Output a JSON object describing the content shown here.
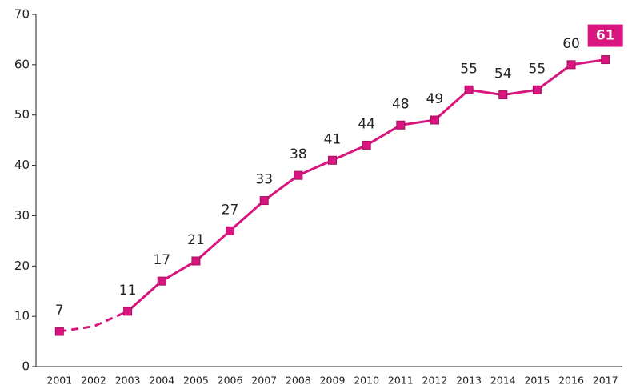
{
  "chart_data": {
    "type": "line",
    "categories": [
      "2001",
      "2002",
      "2003",
      "2004",
      "2005",
      "2006",
      "2007",
      "2008",
      "2009",
      "2010",
      "2011",
      "2012",
      "2013",
      "2014",
      "2015",
      "2016",
      "2017"
    ],
    "values": [
      7,
      8,
      11,
      17,
      21,
      27,
      33,
      38,
      41,
      44,
      48,
      49,
      55,
      54,
      55,
      60,
      61
    ],
    "value_labels": [
      "7",
      null,
      "11",
      "17",
      "21",
      "27",
      "33",
      "38",
      "41",
      "44",
      "48",
      "49",
      "55",
      "54",
      "55",
      "60",
      "61"
    ],
    "color": "#d9157f",
    "dashed_until": "2003",
    "highlight_last": true,
    "ylim": [
      0,
      70
    ],
    "yticks": [
      0,
      10,
      20,
      30,
      40,
      50,
      60,
      70
    ]
  }
}
